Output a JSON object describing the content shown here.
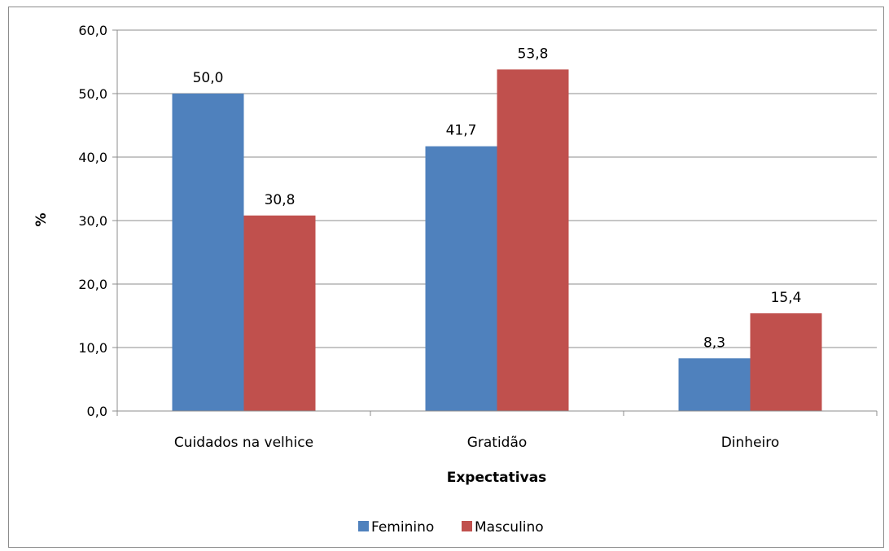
{
  "chart_data": {
    "type": "bar",
    "categories": [
      "Cuidados na velhice",
      "Gratidão",
      "Dinheiro"
    ],
    "series": [
      {
        "name": "Feminino",
        "values": [
          50.0,
          41.7,
          8.3
        ],
        "value_labels": [
          "50,0",
          "41,7",
          "8,3"
        ],
        "color": "#4f81bd"
      },
      {
        "name": "Masculino",
        "values": [
          30.8,
          53.8,
          15.4
        ],
        "value_labels": [
          "30,8",
          "53,8",
          "15,4"
        ],
        "color": "#c0504d"
      }
    ],
    "xlabel": "Expectativas",
    "ylabel": "%",
    "ylim": [
      0,
      60
    ],
    "yticks": [
      0,
      10,
      20,
      30,
      40,
      50,
      60
    ],
    "ytick_labels": [
      "0,0",
      "10,0",
      "20,0",
      "30,0",
      "40,0",
      "50,0",
      "60,0"
    ],
    "grid": true,
    "legend_position": "bottom"
  }
}
